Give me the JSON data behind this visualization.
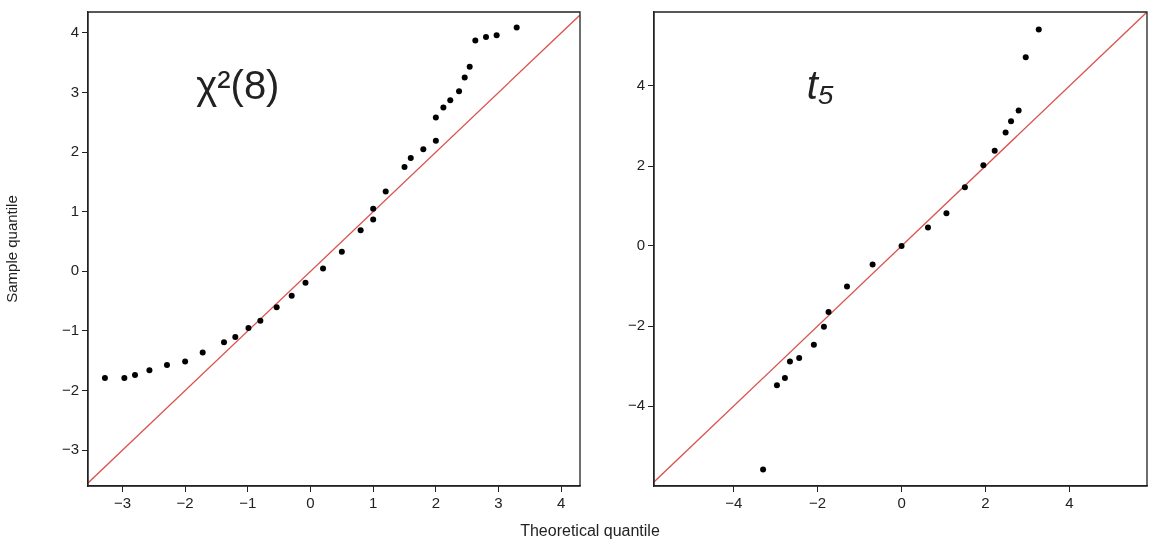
{
  "chart_data": [
    {
      "type": "scatter",
      "xlabel": "Theoretical quantile",
      "ylabel": "Sample quantile",
      "annotations": [
        "χ²(8)"
      ],
      "xlim": [
        -3.55,
        4.3
      ],
      "ylim": [
        -3.6,
        4.35
      ],
      "xticks": [
        -3,
        -2,
        -1,
        0,
        1,
        2,
        3,
        4
      ],
      "yticks": [
        -3,
        -2,
        -1,
        0,
        1,
        2,
        3,
        4
      ],
      "grid": false,
      "legend": false,
      "marker": "circle",
      "series": [
        {
          "color": "#000000",
          "x": [
            -3.28,
            -2.97,
            -2.8,
            -2.57,
            -2.29,
            -2.0,
            -1.72,
            -1.38,
            -1.2,
            -0.99,
            -0.8,
            -0.54,
            -0.3,
            -0.08,
            0.2,
            0.5,
            0.8,
            1.0,
            1.0,
            1.2,
            1.5,
            1.6,
            1.8,
            2.0,
            2.0,
            2.12,
            2.23,
            2.37,
            2.46,
            2.54,
            2.63,
            2.8,
            2.97,
            3.29
          ],
          "values": [
            -1.79,
            -1.79,
            -1.74,
            -1.66,
            -1.57,
            -1.51,
            -1.36,
            -1.19,
            -1.1,
            -0.95,
            -0.83,
            -0.6,
            -0.41,
            -0.19,
            0.05,
            0.33,
            0.69,
            0.87,
            1.05,
            1.34,
            1.75,
            1.9,
            2.05,
            2.19,
            2.58,
            2.75,
            2.87,
            3.02,
            3.25,
            3.43,
            3.87,
            3.93,
            3.96,
            4.09
          ]
        },
        {
          "type": "line",
          "marker": "none",
          "color": "#d9534f",
          "x": [
            -3.55,
            4.3
          ],
          "values": [
            -3.55,
            4.3
          ]
        }
      ]
    },
    {
      "type": "scatter",
      "annotations": [
        "t₅"
      ],
      "xlim": [
        -5.9,
        5.85
      ],
      "ylim": [
        -6,
        5.85
      ],
      "xticks": [
        -4,
        -2,
        0,
        2,
        4
      ],
      "yticks": [
        -4,
        -2,
        0,
        2,
        4
      ],
      "grid": false,
      "legend": false,
      "marker": "circle",
      "series": [
        {
          "color": "#000000",
          "x": [
            -3.3,
            -2.97,
            -2.78,
            -2.66,
            -2.44,
            -2.09,
            -1.85,
            -1.74,
            -1.3,
            -0.69,
            0,
            0.63,
            1.07,
            1.51,
            1.95,
            2.22,
            2.48,
            2.61,
            2.79,
            2.96,
            3.27
          ],
          "values": [
            -5.59,
            -3.48,
            -3.3,
            -2.89,
            -2.8,
            -2.47,
            -2.02,
            -1.65,
            -1.01,
            -0.46,
            0,
            0.46,
            0.82,
            1.47,
            2.02,
            2.38,
            2.84,
            3.12,
            3.39,
            4.72,
            5.41
          ]
        },
        {
          "type": "line",
          "marker": "none",
          "color": "#d9534f",
          "x": [
            -5.9,
            5.85
          ],
          "values": [
            -5.9,
            5.85
          ]
        }
      ]
    }
  ]
}
